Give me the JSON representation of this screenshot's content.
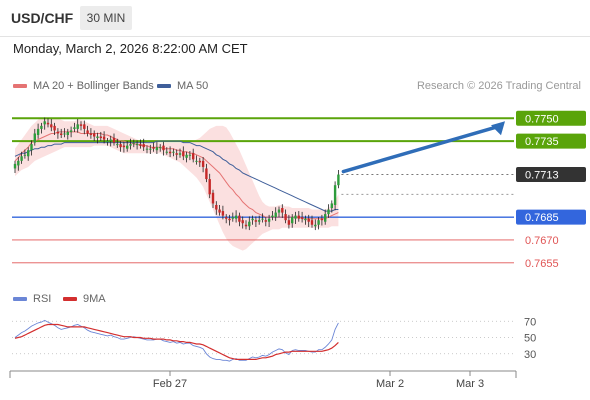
{
  "header": {
    "symbol": "USD/CHF",
    "timeframe": "30 MIN",
    "datetime": "Monday, March 2, 2026 8:22:00 AM CET"
  },
  "legend": {
    "ma20_label": "MA 20 + Bollinger Bands",
    "ma50_label": "MA 50",
    "credit": "Research © 2026 Trading Central"
  },
  "indicator_legend": {
    "rsi_label": "RSI",
    "ma9_label": "9MA"
  },
  "colors": {
    "up_candle": "#2e9c3c",
    "down_candle": "#c62828",
    "ma20": "#e57373",
    "bollinger_fill": "#fadada",
    "ma50": "#3f5f9a",
    "resistance": "#5aa40a",
    "support_blue": "#3366dd",
    "support_red": "#e05555",
    "arrow": "#2f6db8",
    "rsi": "#6b86d6",
    "rsi_ma9": "#d32f2f"
  },
  "chart_data": [
    {
      "type": "candlestick",
      "title": "USD/CHF 30 MIN",
      "x_tick_labels": [
        "Feb 27",
        "Mar 2",
        "Mar 3"
      ],
      "y_range": [
        0.7645,
        0.7762
      ],
      "price_levels": [
        {
          "value": "0.7750",
          "label": "0.7750",
          "kind": "resistance"
        },
        {
          "value": "0.7735",
          "label": "0.7735",
          "kind": "resistance"
        },
        {
          "value": "0.7713",
          "label": "0.7713",
          "kind": "current"
        },
        {
          "value": "0.7685",
          "label": "0.7685",
          "kind": "support"
        },
        {
          "value": "0.7670",
          "label": "0.7670",
          "kind": "support"
        },
        {
          "value": "0.7655",
          "label": "0.7655",
          "kind": "support"
        }
      ],
      "close": [
        0.772,
        0.7722,
        0.7725,
        0.7726,
        0.7729,
        0.7733,
        0.774,
        0.7743,
        0.7745,
        0.7748,
        0.7746,
        0.7744,
        0.7742,
        0.774,
        0.7739,
        0.774,
        0.7741,
        0.7742,
        0.7744,
        0.7746,
        0.7745,
        0.7743,
        0.774,
        0.7739,
        0.7738,
        0.7738,
        0.7737,
        0.7736,
        0.7735,
        0.7736,
        0.7734,
        0.7733,
        0.7731,
        0.7731,
        0.7732,
        0.7733,
        0.7734,
        0.7733,
        0.7732,
        0.7731,
        0.773,
        0.773,
        0.773,
        0.7731,
        0.7731,
        0.7729,
        0.7728,
        0.7727,
        0.7728,
        0.7726,
        0.7727,
        0.7725,
        0.7726,
        0.7726,
        0.7723,
        0.7722,
        0.7721,
        0.7718,
        0.771,
        0.77,
        0.7694,
        0.769,
        0.7688,
        0.7686,
        0.7684,
        0.7683,
        0.7685,
        0.7686,
        0.7682,
        0.7681,
        0.7679,
        0.7682,
        0.7684,
        0.7682,
        0.7683,
        0.7684,
        0.7682,
        0.7684,
        0.7686,
        0.7688,
        0.769,
        0.7688,
        0.7683,
        0.768,
        0.7685,
        0.7686,
        0.7684,
        0.7684,
        0.7684,
        0.7682,
        0.768,
        0.768,
        0.7683,
        0.7683,
        0.7687,
        0.769,
        0.7694,
        0.7706,
        0.7713
      ],
      "ma20": [
        0.7722,
        0.7724,
        0.7727,
        0.7729,
        0.7731,
        0.7734,
        0.7735,
        0.7736,
        0.7737,
        0.7738,
        0.7739,
        0.774,
        0.774,
        0.7741,
        0.7741,
        0.7741,
        0.7741,
        0.7741,
        0.7741,
        0.7741,
        0.774,
        0.774,
        0.774,
        0.774,
        0.774,
        0.774,
        0.774,
        0.7739,
        0.7739,
        0.7738,
        0.7737,
        0.7736,
        0.7735,
        0.7735,
        0.7734,
        0.7734,
        0.7733,
        0.7733,
        0.7732,
        0.7732,
        0.7732,
        0.7731,
        0.7731,
        0.7731,
        0.7731,
        0.773,
        0.773,
        0.773,
        0.773,
        0.7729,
        0.7729,
        0.7728,
        0.7728,
        0.7727,
        0.7727,
        0.7726,
        0.7725,
        0.7724,
        0.7722,
        0.772,
        0.7718,
        0.7716,
        0.7714,
        0.7711,
        0.7708,
        0.7705,
        0.7703,
        0.77,
        0.7698,
        0.7695,
        0.7693,
        0.7691,
        0.769,
        0.7688,
        0.7687,
        0.7686,
        0.7685,
        0.7685,
        0.7685,
        0.7685,
        0.7685,
        0.7685,
        0.7685,
        0.7685,
        0.7685,
        0.7685,
        0.7685,
        0.7684,
        0.7684,
        0.7684,
        0.7684,
        0.7684,
        0.7684,
        0.7684,
        0.7684,
        0.7685,
        0.7686,
        0.7687,
        0.7688
      ],
      "bollinger_upper": [
        0.773,
        0.7733,
        0.7736,
        0.7739,
        0.7742,
        0.7745,
        0.7747,
        0.7749,
        0.775,
        0.775,
        0.775,
        0.775,
        0.775,
        0.775,
        0.7749,
        0.7748,
        0.7748,
        0.7748,
        0.7748,
        0.7749,
        0.7749,
        0.7748,
        0.7747,
        0.7746,
        0.7745,
        0.7745,
        0.7745,
        0.7745,
        0.7745,
        0.7744,
        0.7743,
        0.7742,
        0.7741,
        0.774,
        0.7739,
        0.7738,
        0.7737,
        0.7736,
        0.7735,
        0.7735,
        0.7734,
        0.7734,
        0.7734,
        0.7734,
        0.7734,
        0.7734,
        0.7734,
        0.7734,
        0.7734,
        0.7734,
        0.7734,
        0.7734,
        0.7734,
        0.7734,
        0.7735,
        0.7736,
        0.7737,
        0.7739,
        0.7741,
        0.7743,
        0.7744,
        0.7745,
        0.7745,
        0.7745,
        0.7744,
        0.7741,
        0.7737,
        0.7733,
        0.7729,
        0.7724,
        0.7719,
        0.7714,
        0.7709,
        0.7704,
        0.7699,
        0.7695,
        0.7693,
        0.7692,
        0.7692,
        0.7692,
        0.7693,
        0.7693,
        0.7692,
        0.7692,
        0.7691,
        0.7691,
        0.7691,
        0.7691,
        0.7691,
        0.7691,
        0.769,
        0.769,
        0.769,
        0.769,
        0.769,
        0.7691,
        0.7693,
        0.7696,
        0.77
      ],
      "bollinger_lower": [
        0.7712,
        0.7714,
        0.7716,
        0.7717,
        0.7718,
        0.772,
        0.7722,
        0.7723,
        0.7724,
        0.7725,
        0.7726,
        0.7727,
        0.7728,
        0.7729,
        0.773,
        0.7731,
        0.7731,
        0.7731,
        0.7731,
        0.7731,
        0.7731,
        0.7731,
        0.7731,
        0.7731,
        0.7732,
        0.7732,
        0.7732,
        0.7732,
        0.7732,
        0.7731,
        0.773,
        0.7729,
        0.7728,
        0.7727,
        0.7727,
        0.7727,
        0.7727,
        0.7727,
        0.7727,
        0.7727,
        0.7727,
        0.7727,
        0.7727,
        0.7727,
        0.7727,
        0.7726,
        0.7725,
        0.7724,
        0.7723,
        0.7722,
        0.7721,
        0.7719,
        0.7717,
        0.7715,
        0.7713,
        0.7711,
        0.7708,
        0.7705,
        0.77,
        0.7695,
        0.769,
        0.7685,
        0.768,
        0.7675,
        0.7671,
        0.7668,
        0.7666,
        0.7665,
        0.7664,
        0.7663,
        0.7664,
        0.7666,
        0.7668,
        0.767,
        0.7672,
        0.7674,
        0.7675,
        0.7676,
        0.7677,
        0.7677,
        0.7677,
        0.7678,
        0.7678,
        0.7678,
        0.7678,
        0.7678,
        0.7678,
        0.7678,
        0.7678,
        0.7678,
        0.7678,
        0.7678,
        0.7678,
        0.7678,
        0.7678,
        0.7678,
        0.7679,
        0.7679,
        0.7679
      ],
      "ma50": [
        0.7725,
        0.7726,
        0.7727,
        0.7727,
        0.7728,
        0.7729,
        0.773,
        0.773,
        0.7731,
        0.7731,
        0.7732,
        0.7732,
        0.7733,
        0.7733,
        0.7733,
        0.7734,
        0.7734,
        0.7734,
        0.7734,
        0.7734,
        0.7734,
        0.7734,
        0.7734,
        0.7734,
        0.7734,
        0.7734,
        0.7734,
        0.7734,
        0.7734,
        0.7734,
        0.7734,
        0.7734,
        0.7734,
        0.7734,
        0.7734,
        0.7734,
        0.7734,
        0.7734,
        0.7734,
        0.7734,
        0.7734,
        0.7734,
        0.7734,
        0.7735,
        0.7735,
        0.7735,
        0.7735,
        0.7735,
        0.7735,
        0.7735,
        0.7735,
        0.7734,
        0.7734,
        0.7734,
        0.7733,
        0.7732,
        0.7732,
        0.7731,
        0.773,
        0.7729,
        0.7728,
        0.7726,
        0.7725,
        0.7723,
        0.7722,
        0.772,
        0.7719,
        0.7717,
        0.7716,
        0.7714,
        0.7713,
        0.7712,
        0.7711,
        0.771,
        0.7709,
        0.7708,
        0.7707,
        0.7706,
        0.7705,
        0.7704,
        0.7703,
        0.7702,
        0.7701,
        0.77,
        0.7699,
        0.7698,
        0.7697,
        0.7696,
        0.7695,
        0.7694,
        0.7693,
        0.7692,
        0.7691,
        0.769,
        0.7689,
        0.7689,
        0.7689,
        0.769,
        0.769
      ]
    },
    {
      "type": "line",
      "title": "RSI",
      "y_tick_labels": [
        "70",
        "50",
        "30"
      ],
      "y_range": [
        10,
        90
      ],
      "series": [
        {
          "name": "RSI",
          "values": [
            50,
            53,
            56,
            58,
            61,
            64,
            66,
            68,
            69,
            71,
            69,
            67,
            65,
            62,
            60,
            61,
            62,
            63,
            65,
            66,
            64,
            62,
            59,
            57,
            56,
            55,
            54,
            53,
            52,
            53,
            51,
            50,
            48,
            48,
            49,
            50,
            51,
            50,
            49,
            48,
            47,
            47,
            47,
            48,
            48,
            46,
            45,
            44,
            45,
            43,
            44,
            42,
            43,
            43,
            40,
            39,
            38,
            36,
            30,
            26,
            24,
            23,
            23,
            22,
            22,
            21,
            23,
            24,
            22,
            22,
            22,
            24,
            26,
            25,
            26,
            28,
            27,
            29,
            32,
            34,
            36,
            35,
            31,
            29,
            34,
            35,
            34,
            34,
            34,
            33,
            32,
            32,
            35,
            35,
            38,
            42,
            47,
            60,
            68
          ]
        },
        {
          "name": "9MA",
          "values": [
            49,
            50,
            51,
            53,
            55,
            57,
            59,
            61,
            63,
            65,
            66,
            66,
            66,
            66,
            65,
            64,
            63,
            63,
            63,
            63,
            63,
            63,
            62,
            61,
            60,
            59,
            58,
            57,
            56,
            55,
            54,
            53,
            52,
            51,
            51,
            51,
            50,
            50,
            50,
            49,
            49,
            49,
            48,
            48,
            48,
            48,
            47,
            47,
            46,
            46,
            45,
            45,
            44,
            44,
            43,
            42,
            42,
            41,
            39,
            37,
            35,
            33,
            31,
            29,
            27,
            25,
            24,
            23,
            23,
            23,
            23,
            23,
            23,
            23,
            24,
            25,
            25,
            26,
            27,
            29,
            30,
            31,
            32,
            32,
            33,
            33,
            33,
            33,
            33,
            33,
            33,
            33,
            33,
            33,
            34,
            35,
            37,
            40,
            44
          ]
        }
      ]
    }
  ]
}
